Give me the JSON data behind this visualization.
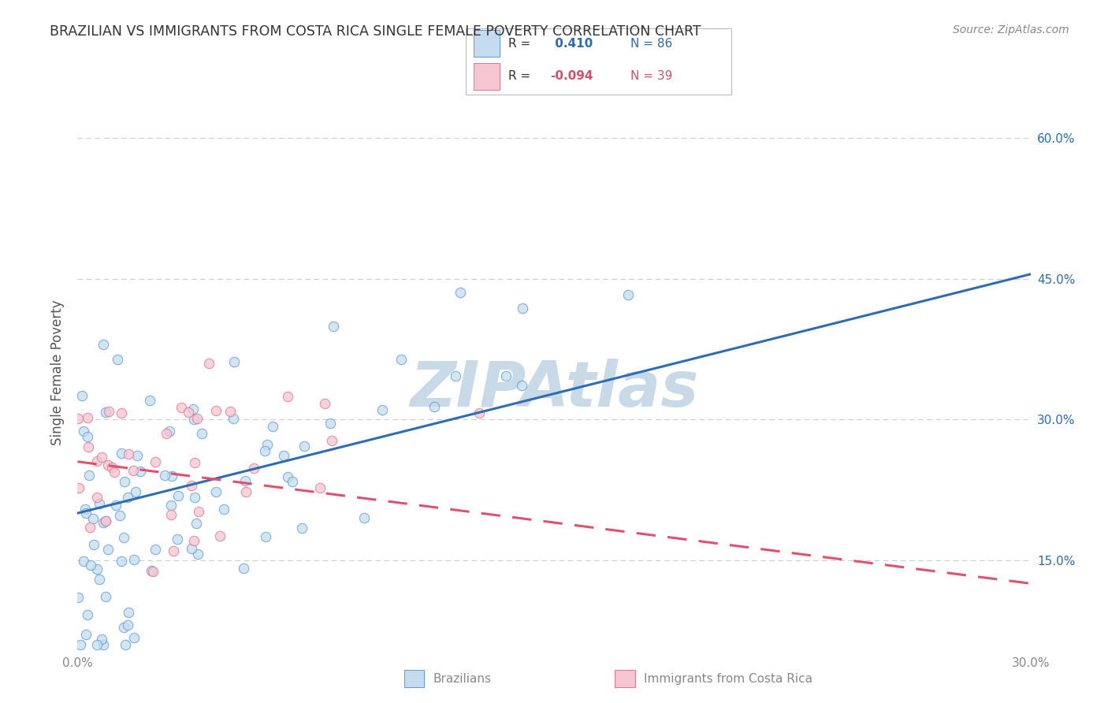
{
  "title": "BRAZILIAN VS IMMIGRANTS FROM COSTA RICA SINGLE FEMALE POVERTY CORRELATION CHART",
  "source_text": "Source: ZipAtlas.com",
  "ylabel": "Single Female Poverty",
  "x_min": 0.0,
  "x_max": 0.3,
  "y_min": 0.05,
  "y_max": 0.65,
  "x_ticks": [
    0.0,
    0.05,
    0.1,
    0.15,
    0.2,
    0.25,
    0.3
  ],
  "x_tick_labels": [
    "0.0%",
    "",
    "",
    "",
    "",
    "",
    "30.0%"
  ],
  "y_ticks": [
    0.15,
    0.3,
    0.45,
    0.6
  ],
  "y_tick_labels": [
    "15.0%",
    "30.0%",
    "45.0%",
    "60.0%"
  ],
  "blue_fill": "#c5dcf0",
  "blue_edge": "#5b9bd5",
  "pink_fill": "#f5c6d0",
  "pink_edge": "#e87090",
  "blue_line_color": "#2e6db5",
  "pink_line_color": "#e05070",
  "watermark_text": "ZIPAtlas",
  "watermark_color": "#c8dae8",
  "background_color": "#ffffff",
  "grid_color": "#cccccc",
  "title_color": "#333333",
  "axis_label_color": "#555555",
  "tick_color": "#888888",
  "r_blue_color": "#2b6cb0",
  "r_pink_color": "#d05070",
  "legend_R_black": "#333333",
  "seed": 42,
  "n_blue": 86,
  "n_pink": 39,
  "R_blue": 0.41,
  "R_pink": -0.094,
  "blue_line_y0": 0.2,
  "blue_line_y1": 0.455,
  "pink_line_y0": 0.255,
  "pink_line_y1": 0.125
}
